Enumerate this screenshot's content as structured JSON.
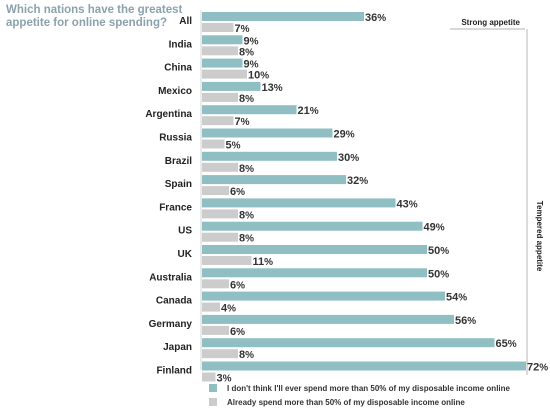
{
  "chart_data": {
    "type": "bar",
    "orientation": "horizontal",
    "title": "Which nations have the greatest appetite for online spending?",
    "categories": [
      "All",
      "India",
      "China",
      "Mexico",
      "Argentina",
      "Russia",
      "Brazil",
      "Spain",
      "France",
      "US",
      "UK",
      "Australia",
      "Canada",
      "Germany",
      "Japan",
      "Finland"
    ],
    "series": [
      {
        "name": "I don't think I'll ever spend more than 50% of my disposable income online",
        "color": "#8fbfc3",
        "values": [
          36,
          9,
          9,
          13,
          21,
          29,
          30,
          32,
          43,
          49,
          50,
          50,
          54,
          56,
          65,
          72
        ]
      },
      {
        "name": "Already spend more than 50% of my disposable income online",
        "color": "#cccccc",
        "values": [
          7,
          8,
          10,
          8,
          7,
          5,
          8,
          6,
          8,
          8,
          11,
          6,
          4,
          6,
          8,
          3
        ]
      }
    ],
    "value_suffix": "%",
    "xlim": [
      0,
      75
    ],
    "grid": false,
    "legend_position": "bottom",
    "annotations": {
      "top_label": "Strong appetite",
      "side_label": "Tempered appetite"
    }
  }
}
